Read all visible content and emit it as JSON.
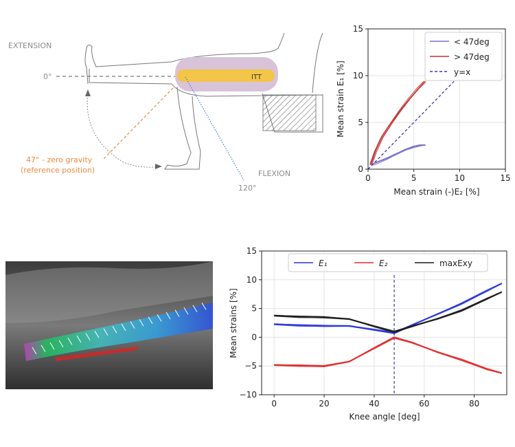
{
  "illustration": {
    "extension_label": "EXTENSION",
    "flexion_label": "FLEXION",
    "angle_0": "0°",
    "angle_120": "120°",
    "ref_line1": "47° - zero gravity",
    "ref_line2": "(reference position)",
    "itt_label": "ITT",
    "colors": {
      "ref": "#f0883a",
      "flex": "#3b7dd8",
      "itt": "#f3c548",
      "itt_bg": "#d9c3d8"
    }
  },
  "chart_data": [
    {
      "type": "line",
      "xlabel": "Mean strain (-)E₂ [%]",
      "ylabel": "Mean strain E₁ [%]",
      "xlim": [
        0,
        15
      ],
      "ylim": [
        0,
        15
      ],
      "xticks": [
        "0",
        "5",
        "10",
        "15"
      ],
      "yticks": [
        "0",
        "5",
        "10",
        "15"
      ],
      "grid": true,
      "legend_position": "top-right",
      "series": [
        {
          "name": "< 47deg",
          "color": "#7b72c9",
          "x": [
            0.4,
            1.0,
            2.0,
            3.0,
            4.0,
            5.0,
            5.8,
            6.2
          ],
          "y": [
            0.5,
            0.8,
            1.2,
            1.6,
            2.0,
            2.3,
            2.5,
            2.6
          ]
        },
        {
          "name": "> 47deg",
          "color": "#c03030",
          "x": [
            0.3,
            0.8,
            1.5,
            2.5,
            3.5,
            4.5,
            5.5,
            6.2
          ],
          "y": [
            0.5,
            2.0,
            3.5,
            4.9,
            6.2,
            7.4,
            8.6,
            9.4
          ]
        },
        {
          "name": "y=x",
          "color": "#3a3aaa",
          "dashed": true,
          "x": [
            0,
            9.5
          ],
          "y": [
            0,
            9.5
          ]
        }
      ]
    },
    {
      "type": "line",
      "xlabel": "Knee angle [deg]",
      "ylabel": "Mean strains [%]",
      "xlim": [
        -5,
        93
      ],
      "ylim": [
        -10,
        15
      ],
      "xticks": [
        "0",
        "20",
        "40",
        "60",
        "80"
      ],
      "yticks": [
        "−10",
        "−5",
        "0",
        "5",
        "10",
        "15"
      ],
      "grid": true,
      "vline_x": 48,
      "legend_position": "top",
      "series": [
        {
          "name": "E₁",
          "color": "#2a35d8",
          "x": [
            0,
            10,
            20,
            30,
            40,
            48,
            55,
            65,
            75,
            85,
            91
          ],
          "y": [
            2.3,
            2.2,
            2.1,
            2.0,
            1.2,
            0.6,
            2.0,
            4.0,
            6.0,
            8.2,
            9.4
          ]
        },
        {
          "name": "E₂",
          "color": "#e02a2a",
          "x": [
            0,
            10,
            20,
            30,
            40,
            48,
            55,
            65,
            75,
            85,
            91
          ],
          "y": [
            -4.8,
            -4.8,
            -4.9,
            -4.2,
            -2.0,
            -0.2,
            -1.0,
            -2.5,
            -3.8,
            -5.4,
            -6.2
          ]
        },
        {
          "name": "maxExy",
          "color": "#1a1a1a",
          "x": [
            0,
            10,
            20,
            30,
            40,
            48,
            55,
            65,
            75,
            85,
            91
          ],
          "y": [
            3.8,
            3.7,
            3.6,
            3.2,
            1.8,
            0.8,
            1.8,
            3.2,
            4.8,
            6.8,
            7.9
          ]
        }
      ]
    }
  ]
}
